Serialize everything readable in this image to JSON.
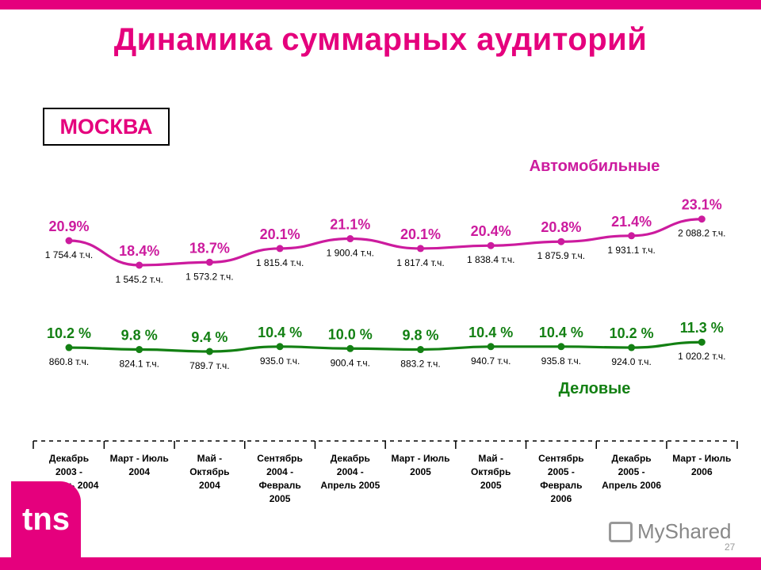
{
  "slide": {
    "title": "Динамика суммарных аудиторий",
    "city": "МОСКВА",
    "logo_text": "tns",
    "watermark": "MyShared",
    "page_number": "27"
  },
  "colors": {
    "accent": "#e5007d",
    "series_auto": "#cc1b9e",
    "series_business": "#138013"
  },
  "chart_data": {
    "type": "line",
    "categories": [
      [
        "Декабрь",
        "2003 -",
        "Апрель 2004"
      ],
      [
        "Март - Июль",
        "2004"
      ],
      [
        "Май -",
        "Октябрь",
        "2004"
      ],
      [
        "Сентябрь",
        "2004 -",
        "Февраль",
        "2005"
      ],
      [
        "Декабрь",
        "2004 -",
        "Апрель 2005"
      ],
      [
        "Март - Июль",
        "2005"
      ],
      [
        "Май -",
        "Октябрь",
        "2005"
      ],
      [
        "Сентябрь",
        "2005 -",
        "Февраль",
        "2006"
      ],
      [
        "Декабрь",
        "2005 -",
        "Апрель 2006"
      ],
      [
        "Март - Июль",
        "2006"
      ]
    ],
    "series": [
      {
        "name": "Автомобильные",
        "share_percent": [
          20.9,
          18.4,
          18.7,
          20.1,
          21.1,
          20.1,
          20.4,
          20.8,
          21.4,
          23.1
        ],
        "pct_labels": [
          "20.9%",
          "18.4%",
          "18.7%",
          "20.1%",
          "21.1%",
          "20.1%",
          "20.4%",
          "20.8%",
          "21.4%",
          "23.1%"
        ],
        "audience_labels": [
          "1 754.4 т.ч.",
          "1 545.2 т.ч.",
          "1 573.2 т.ч.",
          "1 815.4 т.ч.",
          "1 900.4 т.ч.",
          "1 817.4 т.ч.",
          "1 838.4 т.ч.",
          "1 875.9 т.ч.",
          "1 931.1 т.ч.",
          "2 088.2 т.ч."
        ]
      },
      {
        "name": "Деловые",
        "share_percent": [
          10.2,
          9.8,
          9.4,
          10.4,
          10.0,
          9.8,
          10.4,
          10.4,
          10.2,
          11.3
        ],
        "pct_labels": [
          "10.2 %",
          "9.8 %",
          "9.4 %",
          "10.4 %",
          "10.0 %",
          "9.8 %",
          "10.4 %",
          "10.4 %",
          "10.2 %",
          "11.3 %"
        ],
        "audience_labels": [
          "860.8 т.ч.",
          "824.1 т.ч.",
          "789.7 т.ч.",
          "935.0 т.ч.",
          "900.4 т.ч.",
          "883.2 т.ч.",
          "940.7 т.ч.",
          "935.8 т.ч.",
          "924.0 т.ч.",
          "1 020.2 т.ч."
        ]
      }
    ],
    "grid": false,
    "legend": "inline labels above (Автомобильные) and below (Деловые) the lines"
  }
}
